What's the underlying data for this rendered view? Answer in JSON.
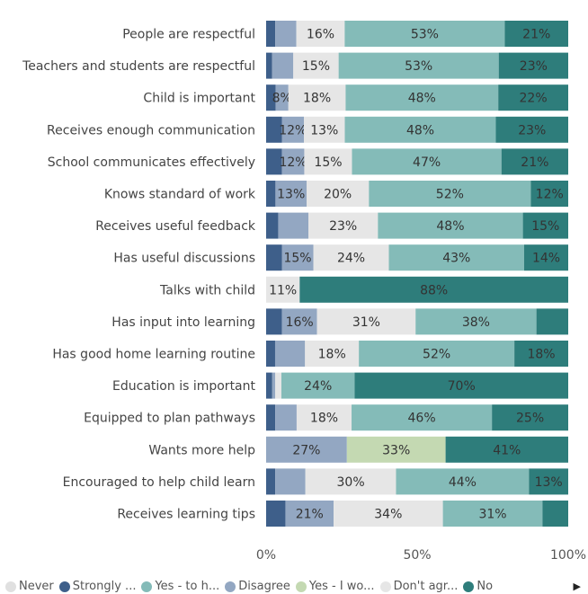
{
  "chart_data": {
    "type": "bar",
    "orientation": "horizontal",
    "stacked": "100%",
    "categories": [
      "People are respectful",
      "Teachers and students are respectful",
      "Child is important",
      "Receives enough communication",
      "School communicates effectively",
      "Knows standard of work",
      "Receives useful feedback",
      "Has useful discussions",
      "Talks with child",
      "Has input into learning",
      "Has good home learning routine",
      "Education is important",
      "Equipped to plan pathways",
      "Wants more help",
      "Encouraged to help child learn",
      "Receives learning tips"
    ],
    "series": [
      {
        "name": "Strongly ...",
        "color": "#3e5f8a",
        "values": [
          3,
          2,
          3,
          5,
          5,
          3,
          4,
          5,
          0,
          5,
          3,
          2,
          3,
          0,
          3,
          6
        ]
      },
      {
        "name": "Disagree",
        "color": "#93a7c2",
        "values": [
          7,
          7,
          4,
          7,
          7,
          10,
          10,
          10,
          0,
          11,
          10,
          1,
          7,
          27,
          10,
          15
        ]
      },
      {
        "name": "Don't agr...",
        "color": "#e6e6e6",
        "values": [
          16,
          15,
          18,
          13,
          15,
          20,
          23,
          24,
          11,
          31,
          18,
          2,
          18,
          0,
          30,
          34
        ]
      },
      {
        "name": "Yes - I wo...",
        "color": "#c4d9b2",
        "values": [
          0,
          0,
          0,
          0,
          0,
          0,
          0,
          0,
          0,
          0,
          0,
          0,
          0,
          33,
          0,
          0
        ]
      },
      {
        "name": "Yes - to h...",
        "color": "#84bbb8",
        "values": [
          53,
          53,
          48,
          48,
          47,
          52,
          48,
          43,
          0,
          38,
          52,
          24,
          46,
          0,
          44,
          31
        ]
      },
      {
        "name": "No",
        "color": "#2e7d7b",
        "values": [
          21,
          23,
          22,
          23,
          21,
          12,
          15,
          14,
          88,
          10,
          18,
          70,
          25,
          41,
          13,
          8
        ]
      }
    ],
    "data_labels": [
      [
        "",
        "",
        "16%",
        "",
        "53%",
        "21%"
      ],
      [
        "",
        "",
        "15%",
        "",
        "53%",
        "23%"
      ],
      [
        "",
        "8%",
        "18%",
        "",
        "48%",
        "22%"
      ],
      [
        "",
        "12%",
        "13%",
        "",
        "48%",
        "23%"
      ],
      [
        "",
        "12%",
        "15%",
        "",
        "47%",
        "21%"
      ],
      [
        "",
        "13%",
        "20%",
        "",
        "52%",
        "12%"
      ],
      [
        "",
        "",
        "23%",
        "",
        "48%",
        "15%"
      ],
      [
        "",
        "15%",
        "24%",
        "",
        "43%",
        "14%"
      ],
      [
        "",
        "",
        "11%",
        "",
        "",
        "88%"
      ],
      [
        "",
        "16%",
        "31%",
        "",
        "38%",
        ""
      ],
      [
        "",
        "",
        "18%",
        "",
        "52%",
        "18%"
      ],
      [
        "",
        "",
        "",
        "",
        "24%",
        "70%"
      ],
      [
        "",
        "",
        "18%",
        "",
        "46%",
        "25%"
      ],
      [
        "",
        "27%",
        "",
        "33%",
        "",
        "41%"
      ],
      [
        "",
        "",
        "30%",
        "",
        "44%",
        "13%"
      ],
      [
        "",
        "21%",
        "34%",
        "",
        "31%",
        ""
      ]
    ],
    "x_ticks": [
      "0%",
      "50%",
      "100%"
    ],
    "xlim": [
      0,
      100
    ],
    "grid": false,
    "legend": {
      "position": "bottom",
      "entries": [
        {
          "name": "Never",
          "color": "#e0e0e0"
        },
        {
          "name": "Strongly ...",
          "color": "#3e5f8a"
        },
        {
          "name": "Yes - to h...",
          "color": "#84bbb8"
        },
        {
          "name": "Disagree",
          "color": "#93a7c2"
        },
        {
          "name": "Yes - I wo...",
          "color": "#c4d9b2"
        },
        {
          "name": "Don't agr...",
          "color": "#e6e6e6"
        },
        {
          "name": "No",
          "color": "#2e7d7b"
        }
      ],
      "more_icon": "▶"
    }
  }
}
